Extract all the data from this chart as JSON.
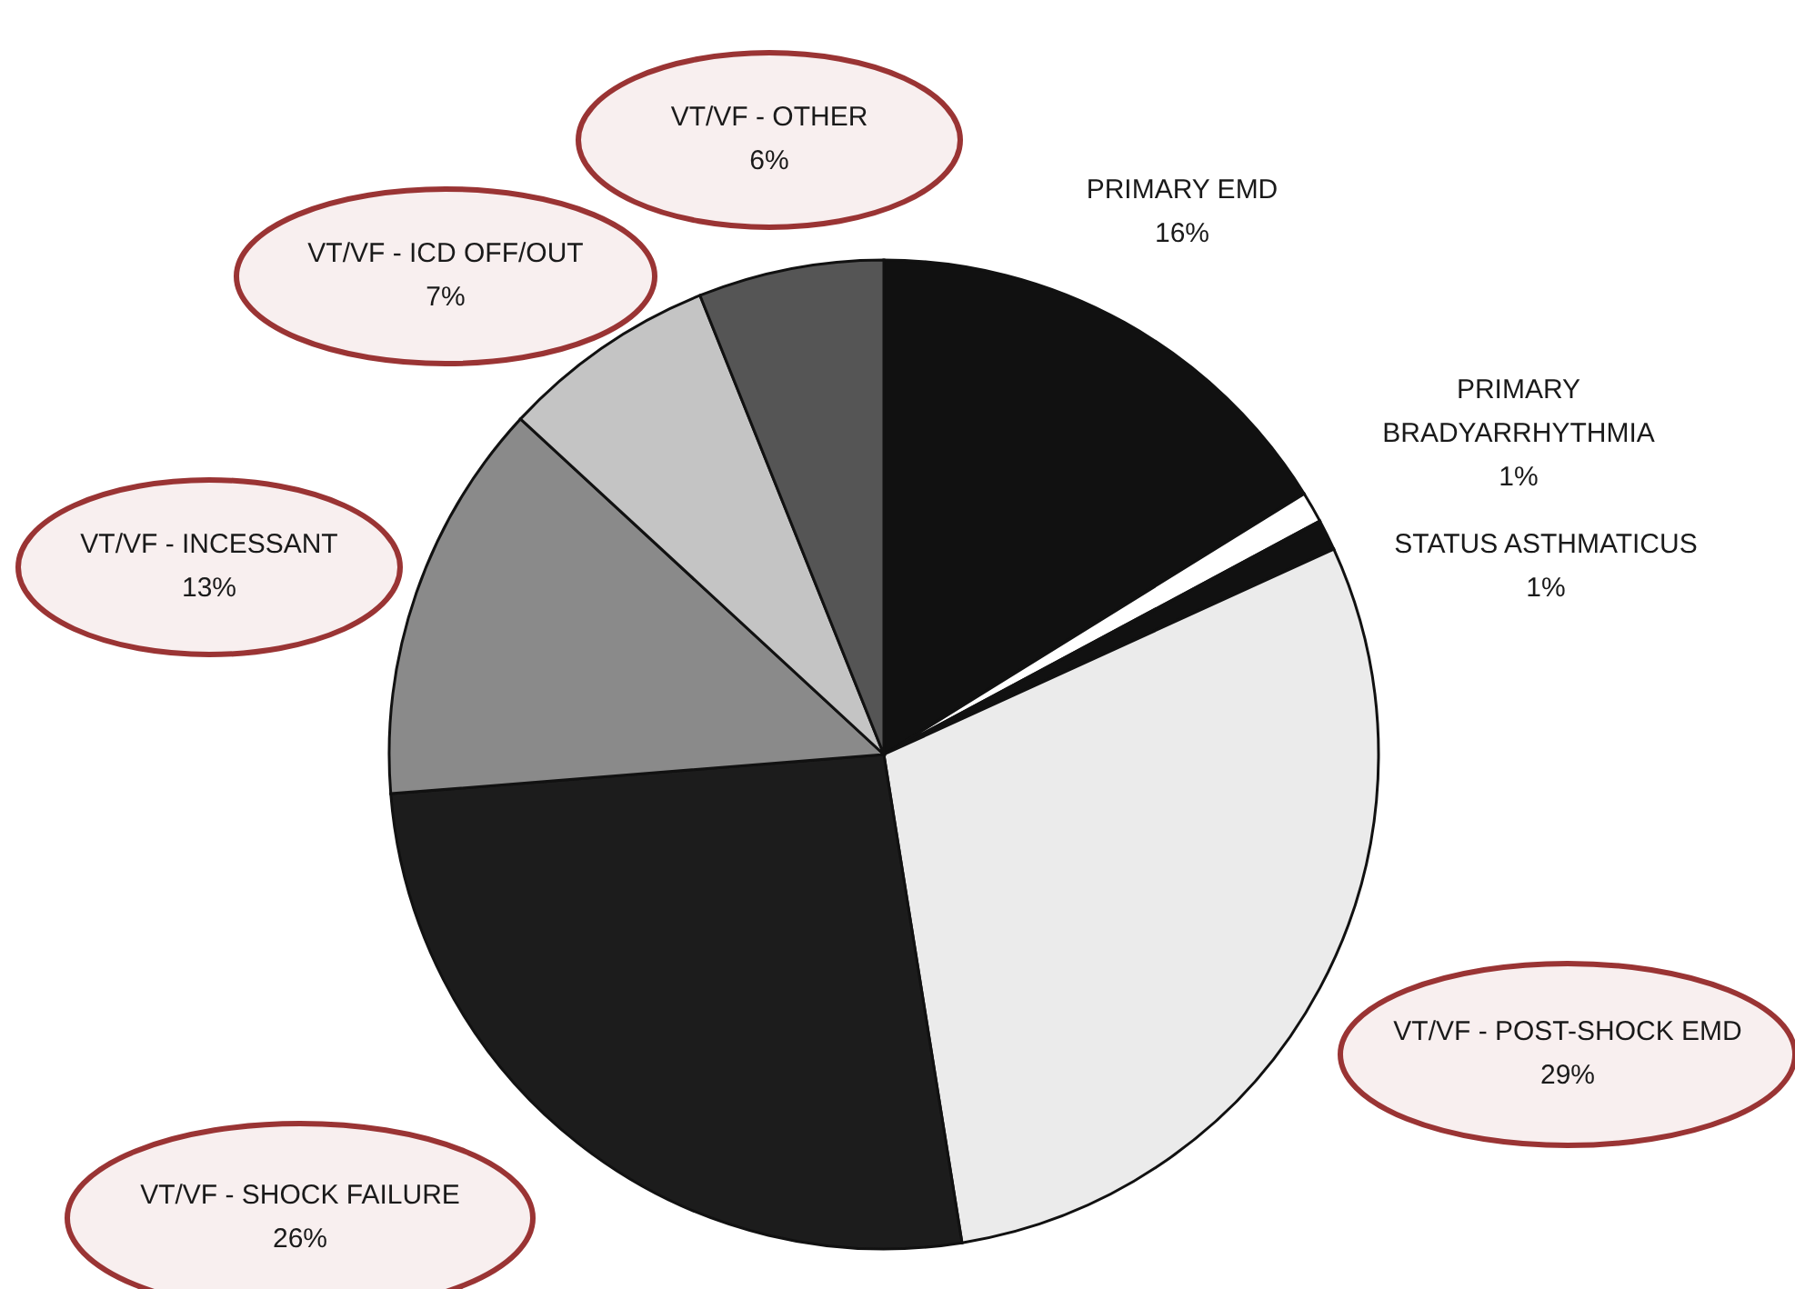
{
  "chart_data": {
    "type": "pie",
    "categories": [
      "PRIMARY EMD",
      "PRIMARY BRADYARRHYTHMIA",
      "STATUS ASTHMATICUS",
      "VT/VF - POST-SHOCK EMD",
      "VT/VF - SHOCK FAILURE",
      "VT/VF - INCESSANT",
      "VT/VF - ICD OFF/OUT",
      "VT/VF - OTHER"
    ],
    "values": [
      16,
      1,
      1,
      29,
      26,
      13,
      7,
      6
    ],
    "value_labels": [
      "16%",
      "1%",
      "1%",
      "29%",
      "26%",
      "13%",
      "7%",
      "6%"
    ],
    "colors": [
      "#111111",
      "#ffffff",
      "#111111",
      "#ebebeb",
      "#1c1c1c",
      "#8a8a8a",
      "#c4c4c4",
      "#555555"
    ]
  }
}
